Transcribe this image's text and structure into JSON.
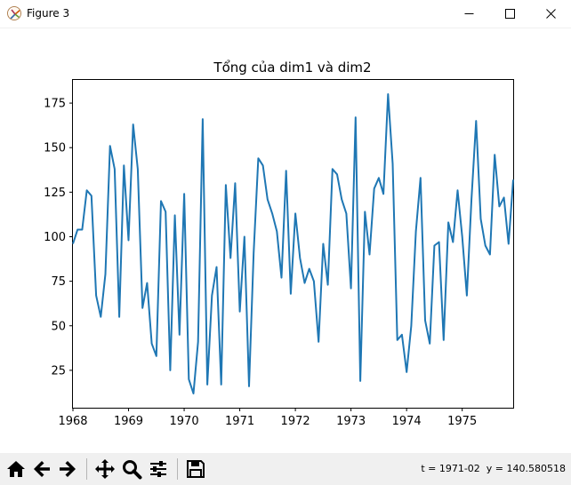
{
  "window": {
    "title": "Figure 3",
    "icon": "matplotlib-figure-icon",
    "controls": [
      "minimize-icon",
      "maximize-icon",
      "close-icon"
    ]
  },
  "chart_data": {
    "type": "line",
    "title": "Tổng của dim1 và dim2",
    "xlabel": "",
    "ylabel": "",
    "x_ticks": [
      "1968",
      "1969",
      "1970",
      "1971",
      "1972",
      "1973",
      "1974",
      "1975"
    ],
    "y_ticks": [
      "25",
      "50",
      "75",
      "100",
      "125",
      "150",
      "175"
    ],
    "xlim": [
      "1968-01",
      "1975-12"
    ],
    "ylim": [
      4,
      188
    ],
    "grid": false,
    "line_color": "#1f77b4",
    "x_start": "1968-01",
    "x_step": "month",
    "series": [
      {
        "values": [
          96,
          104,
          104,
          126,
          123,
          67,
          55,
          79,
          151,
          138,
          55,
          140,
          98,
          163,
          138,
          60,
          74,
          40,
          33,
          120,
          114,
          25,
          112,
          45,
          124,
          20,
          12,
          41,
          166,
          17,
          67,
          83,
          17,
          129,
          88,
          130,
          58,
          100,
          16,
          91,
          144,
          140,
          121,
          113,
          103,
          77,
          137,
          68,
          113,
          88,
          74,
          82,
          75,
          41,
          96,
          73,
          138,
          135,
          121,
          113,
          71,
          167,
          19,
          114,
          90,
          127,
          133,
          124,
          180,
          141,
          42,
          45,
          24,
          50,
          103,
          133,
          53,
          40,
          95,
          97,
          42,
          108,
          97,
          126,
          100,
          67,
          121,
          165,
          110,
          95,
          90,
          146,
          117,
          122,
          96,
          132
        ]
      }
    ]
  },
  "toolbar": {
    "buttons": [
      "home-icon",
      "back-icon",
      "forward-icon",
      "pan-icon",
      "zoom-icon",
      "configure-subplots-icon",
      "save-icon"
    ],
    "coordinates": "t = 1971-02  y = 140.580518"
  }
}
